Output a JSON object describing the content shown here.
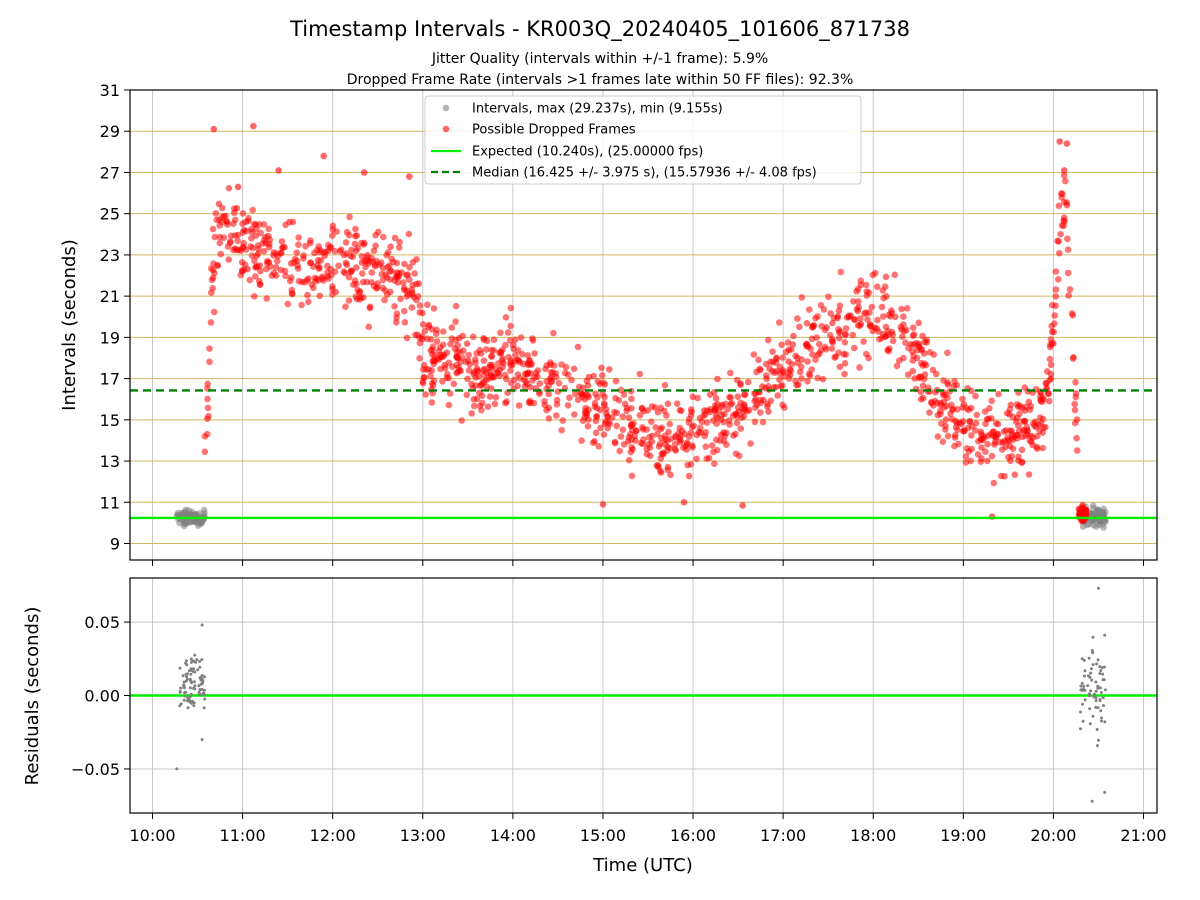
{
  "title": "Timestamp Intervals - KR003Q_20240405_101606_871738",
  "subtitle_1": "Jitter Quality (intervals within +/-1 frame): 5.9%",
  "subtitle_2": "Dropped Frame Rate (intervals >1 frames late within 50 FF files): 92.3%",
  "colors": {
    "intervals": "#808080",
    "dropped": "#ff0000",
    "expected": "#00ee00",
    "median": "#008000",
    "hgrid_top": "#d2b964",
    "grid": "#c8c8c8"
  },
  "chart_data": [
    {
      "type": "scatter",
      "panel": "top",
      "ylabel": "Intervals (seconds)",
      "ylim": [
        8.2,
        31
      ],
      "yticks": [
        "9",
        "11",
        "13",
        "15",
        "17",
        "19",
        "21",
        "23",
        "25",
        "27",
        "29",
        "31"
      ],
      "ytick_values": [
        9,
        11,
        13,
        15,
        17,
        19,
        21,
        23,
        25,
        27,
        29,
        31
      ],
      "xlim_hours": [
        9.75,
        21.15
      ],
      "xtick_hours": [
        10,
        11,
        12,
        13,
        14,
        15,
        16,
        17,
        18,
        19,
        20,
        21
      ],
      "grid": "horizontal-dense and vertical",
      "legend_position": "top-center",
      "legend": [
        {
          "label": "Intervals, max (29.237s), min (9.155s)",
          "style": "gray-dot"
        },
        {
          "label": "Possible Dropped Frames",
          "style": "red-dot"
        },
        {
          "label": "Expected (10.240s), (25.00000 fps)",
          "style": "green-solid"
        },
        {
          "label": "Median (16.425 +/- 3.975 s), (15.57936 +/- 4.08 fps)",
          "style": "green-dashed"
        }
      ],
      "expected": 10.24,
      "median": 16.425,
      "series": [
        {
          "name": "Intervals, max (29.237s), min (9.155s)",
          "clusters": [
            {
              "x_range": [
                10.27,
                10.58
              ],
              "y_mean": 10.24,
              "y_spread": 0.28,
              "count": 90
            },
            {
              "x_range": [
                20.32,
                20.58
              ],
              "y_mean": 10.3,
              "y_spread": 0.38,
              "count": 80
            }
          ]
        },
        {
          "name": "Possible Dropped Frames",
          "trend": [
            [
              10.58,
              13.5
            ],
            [
              10.62,
              17.0
            ],
            [
              10.66,
              21.5
            ],
            [
              10.72,
              24.0
            ],
            [
              11.0,
              23.5
            ],
            [
              11.5,
              22.5
            ],
            [
              12.0,
              22.5
            ],
            [
              12.5,
              22.0
            ],
            [
              12.9,
              21.5
            ],
            [
              13.0,
              18.5
            ],
            [
              13.5,
              17.3
            ],
            [
              14.0,
              17.8
            ],
            [
              14.5,
              16.6
            ],
            [
              15.0,
              15.4
            ],
            [
              15.5,
              14.2
            ],
            [
              16.0,
              14.3
            ],
            [
              16.5,
              15.4
            ],
            [
              17.0,
              17.5
            ],
            [
              17.5,
              19.0
            ],
            [
              18.0,
              20.5
            ],
            [
              18.3,
              19.5
            ],
            [
              18.7,
              16.5
            ],
            [
              19.0,
              14.8
            ],
            [
              19.5,
              14.2
            ],
            [
              19.9,
              15.4
            ],
            [
              20.0,
              19.0
            ],
            [
              20.05,
              23.0
            ],
            [
              20.1,
              26.0
            ],
            [
              20.15,
              24.0
            ],
            [
              20.22,
              18.0
            ],
            [
              20.27,
              14.0
            ]
          ],
          "spread": 1.8,
          "count": 1500,
          "outliers": [
            [
              10.68,
              29.1
            ],
            [
              11.12,
              29.25
            ],
            [
              10.95,
              26.3
            ],
            [
              11.4,
              27.1
            ],
            [
              11.9,
              27.8
            ],
            [
              12.35,
              27.0
            ],
            [
              12.85,
              26.8
            ],
            [
              15.0,
              10.9
            ],
            [
              15.9,
              11.0
            ],
            [
              16.55,
              10.85
            ],
            [
              19.32,
              10.3
            ],
            [
              20.07,
              28.5
            ],
            [
              20.15,
              28.4
            ],
            [
              20.12,
              27.1
            ]
          ],
          "tail_cluster": {
            "x_range": [
              20.28,
              20.37
            ],
            "y_mean": 10.5,
            "y_spread": 0.35,
            "count": 30
          }
        }
      ]
    },
    {
      "type": "scatter",
      "panel": "bottom",
      "xlabel": "Time (UTC)",
      "ylabel": "Residuals (seconds)",
      "ylim": [
        -0.08,
        0.08
      ],
      "yticks": [
        "−0.05",
        "0.00",
        "0.05"
      ],
      "ytick_values": [
        -0.05,
        0.0,
        0.05
      ],
      "xtick_labels": [
        "10:00",
        "11:00",
        "12:00",
        "13:00",
        "14:00",
        "15:00",
        "16:00",
        "17:00",
        "18:00",
        "19:00",
        "20:00",
        "21:00"
      ],
      "xtick_hours": [
        10,
        11,
        12,
        13,
        14,
        15,
        16,
        17,
        18,
        19,
        20,
        21
      ],
      "zero_line": 0.0,
      "series": [
        {
          "name": "Residuals",
          "clusters": [
            {
              "x_range": [
                10.3,
                10.58
              ],
              "y_mean": 0.008,
              "y_spread": 0.014,
              "count": 90
            },
            {
              "x_range": [
                20.3,
                20.58
              ],
              "y_mean": 0.005,
              "y_spread": 0.022,
              "count": 70
            }
          ],
          "outliers": [
            [
              10.27,
              -0.05
            ],
            [
              10.55,
              0.048
            ],
            [
              10.55,
              -0.03
            ],
            [
              20.5,
              0.073
            ],
            [
              20.43,
              -0.072
            ],
            [
              20.57,
              -0.066
            ],
            [
              20.57,
              0.041
            ]
          ]
        }
      ]
    }
  ]
}
